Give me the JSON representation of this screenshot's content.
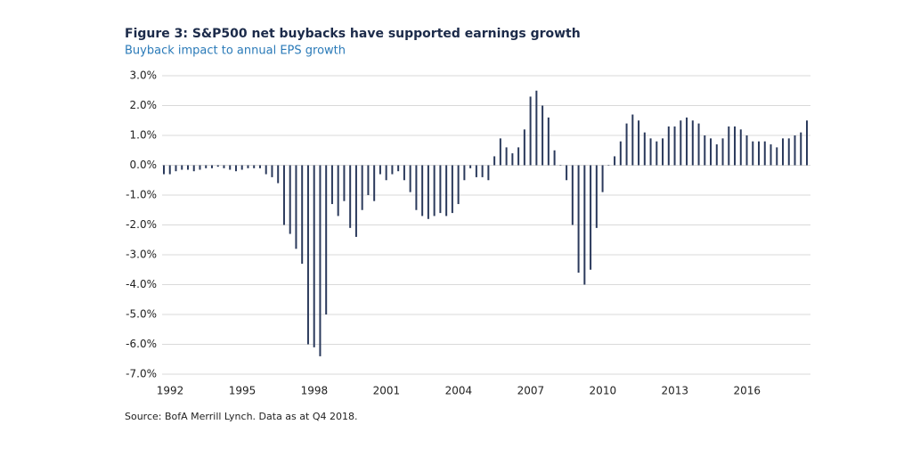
{
  "chart_data": {
    "type": "bar",
    "title": "Figure 3: S&P500 net buybacks have supported earnings growth",
    "subtitle": "Buyback impact to annual EPS growth",
    "source": "Source: BofA Merrill Lynch. Data as at Q4 2018.",
    "categories": [
      "1992",
      null,
      null,
      null,
      null,
      null,
      null,
      null,
      null,
      null,
      null,
      null,
      "1995",
      null,
      null,
      null,
      null,
      null,
      null,
      null,
      null,
      null,
      null,
      null,
      "1998",
      null,
      null,
      null,
      null,
      null,
      null,
      null,
      null,
      null,
      null,
      null,
      "2001",
      null,
      null,
      null,
      null,
      null,
      null,
      null,
      null,
      null,
      null,
      null,
      "2004",
      null,
      null,
      null,
      null,
      null,
      null,
      null,
      null,
      null,
      null,
      null,
      "2007",
      null,
      null,
      null,
      null,
      null,
      null,
      null,
      null,
      null,
      null,
      null,
      "2010",
      null,
      null,
      null,
      null,
      null,
      null,
      null,
      null,
      null,
      null,
      null,
      "2013",
      null,
      null,
      null,
      null,
      null,
      null,
      null,
      null,
      null,
      null,
      null,
      "2016",
      null,
      null,
      null,
      null,
      null,
      null,
      null,
      null,
      null,
      null,
      null
    ],
    "values": [
      -0.3,
      -0.3,
      -0.2,
      -0.15,
      -0.15,
      -0.2,
      -0.15,
      -0.1,
      -0.1,
      -0.05,
      -0.1,
      -0.15,
      -0.2,
      -0.15,
      -0.1,
      -0.1,
      -0.1,
      -0.3,
      -0.4,
      -0.6,
      -2.0,
      -2.3,
      -2.8,
      -3.3,
      -6.0,
      -6.1,
      -6.4,
      -5.0,
      -1.3,
      -1.7,
      -1.2,
      -2.1,
      -2.4,
      -1.5,
      -1.0,
      -1.2,
      -0.3,
      -0.5,
      -0.3,
      -0.2,
      -0.5,
      -0.9,
      -1.5,
      -1.7,
      -1.8,
      -1.7,
      -1.6,
      -1.7,
      -1.6,
      -1.3,
      -0.5,
      -0.1,
      -0.4,
      -0.4,
      -0.5,
      0.3,
      0.9,
      0.6,
      0.4,
      0.6,
      1.2,
      2.3,
      2.5,
      2.0,
      1.6,
      0.5,
      0.0,
      -0.5,
      -2.0,
      -3.6,
      -4.0,
      -3.5,
      -2.1,
      -0.9,
      0.0,
      0.3,
      0.8,
      1.4,
      1.7,
      1.5,
      1.1,
      0.9,
      0.8,
      0.9,
      1.3,
      1.3,
      1.5,
      1.6,
      1.5,
      1.4,
      1.0,
      0.9,
      0.7,
      0.9,
      1.3,
      1.3,
      1.2,
      1.0,
      0.8,
      0.8,
      0.8,
      0.7,
      0.6,
      0.9,
      0.9,
      1.0,
      1.1,
      1.5
    ],
    "color": "#2b3a5c",
    "ylim": [
      -7,
      3
    ],
    "yticks": [
      {
        "value": 3,
        "label": "3.0%"
      },
      {
        "value": 2,
        "label": "2.0%"
      },
      {
        "value": 1,
        "label": "1.0%"
      },
      {
        "value": 0,
        "label": "0.0%"
      },
      {
        "value": -1,
        "label": "-1.0%"
      },
      {
        "value": -2,
        "label": "-2.0%"
      },
      {
        "value": -3,
        "label": "-3.0%"
      },
      {
        "value": -4,
        "label": "-4.0%"
      },
      {
        "value": -5,
        "label": "-5.0%"
      },
      {
        "value": -6,
        "label": "-6.0%"
      },
      {
        "value": -7,
        "label": "-7.0%"
      }
    ],
    "grid": true
  }
}
